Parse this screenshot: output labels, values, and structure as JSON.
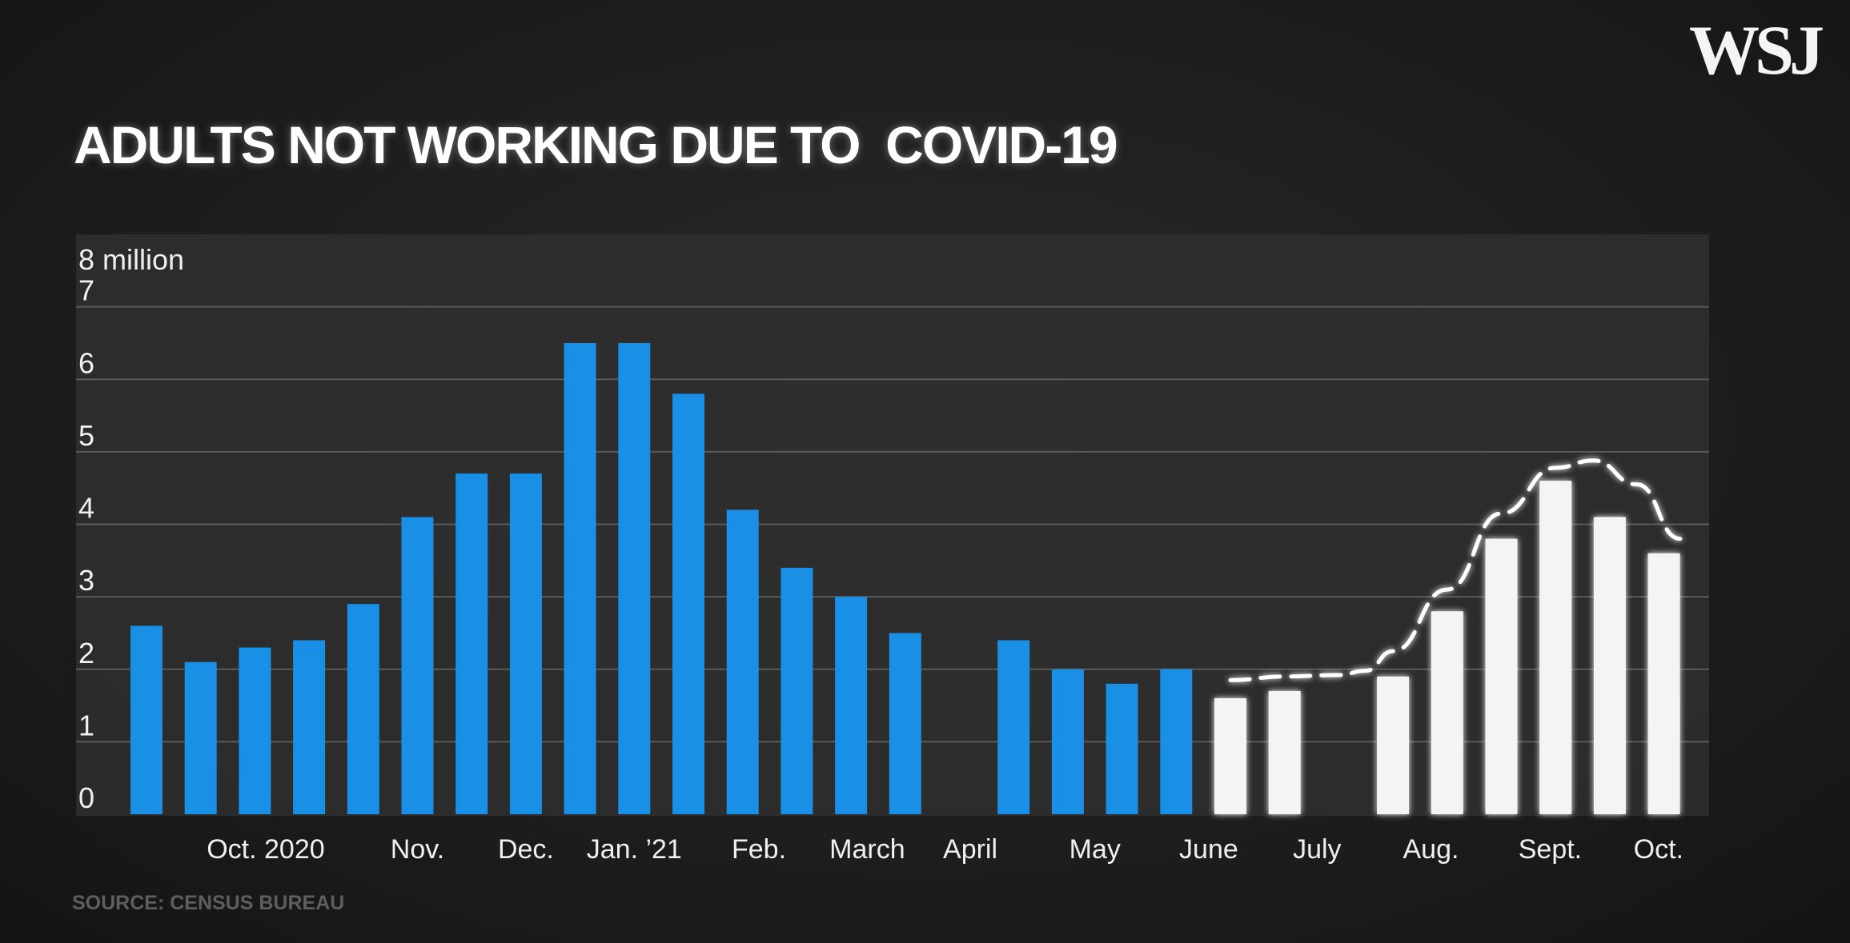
{
  "logo": "WSJ",
  "title": "ADULTS NOT WORKING DUE TO  COVID-19",
  "source": "SOURCE: CENSUS BUREAU",
  "chart_data": {
    "type": "bar",
    "title": "ADULTS NOT WORKING DUE TO  COVID-19",
    "ylabel": "",
    "xlabel": "",
    "unit_label": "8 million",
    "ylim": [
      0,
      8
    ],
    "y_ticks": [
      0,
      1,
      2,
      3,
      4,
      5,
      6,
      7,
      8
    ],
    "y_tick_labels": [
      "0",
      "1",
      "2",
      "3",
      "4",
      "5",
      "6",
      "7",
      "8 million"
    ],
    "grid": true,
    "x_tick_labels": [
      "Oct. 2020",
      "Nov.",
      "Dec.",
      "Jan. ’21",
      "Feb.",
      "March",
      "April",
      "May",
      "June",
      "July",
      "Aug.",
      "Sept.",
      "Oct."
    ],
    "x_tick_bar_positions": [
      2.2,
      5.0,
      7.0,
      9.0,
      11.3,
      13.3,
      15.2,
      17.5,
      19.6,
      21.6,
      23.7,
      25.9,
      27.9
    ],
    "bar_slots": 29,
    "bars": [
      {
        "value": 2.6,
        "group": "blue"
      },
      {
        "value": 2.1,
        "group": "blue"
      },
      {
        "value": 2.3,
        "group": "blue"
      },
      {
        "value": 2.4,
        "group": "blue"
      },
      {
        "value": 2.9,
        "group": "blue"
      },
      {
        "value": 4.1,
        "group": "blue"
      },
      {
        "value": 4.7,
        "group": "blue"
      },
      {
        "value": 4.7,
        "group": "blue"
      },
      {
        "value": 6.5,
        "group": "blue"
      },
      {
        "value": 6.5,
        "group": "blue"
      },
      {
        "value": 5.8,
        "group": "blue"
      },
      {
        "value": 4.2,
        "group": "blue"
      },
      {
        "value": 3.4,
        "group": "blue"
      },
      {
        "value": 3.0,
        "group": "blue"
      },
      {
        "value": 2.5,
        "group": "blue"
      },
      {
        "value": null,
        "group": "blue"
      },
      {
        "value": 2.4,
        "group": "blue"
      },
      {
        "value": 2.0,
        "group": "blue"
      },
      {
        "value": 1.8,
        "group": "blue"
      },
      {
        "value": 2.0,
        "group": "blue"
      },
      {
        "value": 1.6,
        "group": "white"
      },
      {
        "value": 1.7,
        "group": "white"
      },
      {
        "value": null,
        "group": "white"
      },
      {
        "value": 1.9,
        "group": "white"
      },
      {
        "value": 2.8,
        "group": "white"
      },
      {
        "value": 3.8,
        "group": "white"
      },
      {
        "value": 4.6,
        "group": "white"
      },
      {
        "value": 4.1,
        "group": "white"
      },
      {
        "value": 3.6,
        "group": "white"
      }
    ],
    "trend_line": {
      "style": "dashed",
      "x": [
        20,
        21,
        22,
        22.5,
        23,
        24,
        25,
        26,
        26.7,
        27.5,
        28.3
      ],
      "y": [
        1.85,
        1.9,
        1.92,
        1.98,
        2.25,
        3.1,
        4.15,
        4.78,
        4.88,
        4.55,
        3.8
      ]
    },
    "colors": {
      "blue": "#1a8fe6",
      "white": "#f4f4f4",
      "grid": "#5a5a5a",
      "axis": "#f0f0f0",
      "plot_bg": "#2f2f2f"
    }
  }
}
